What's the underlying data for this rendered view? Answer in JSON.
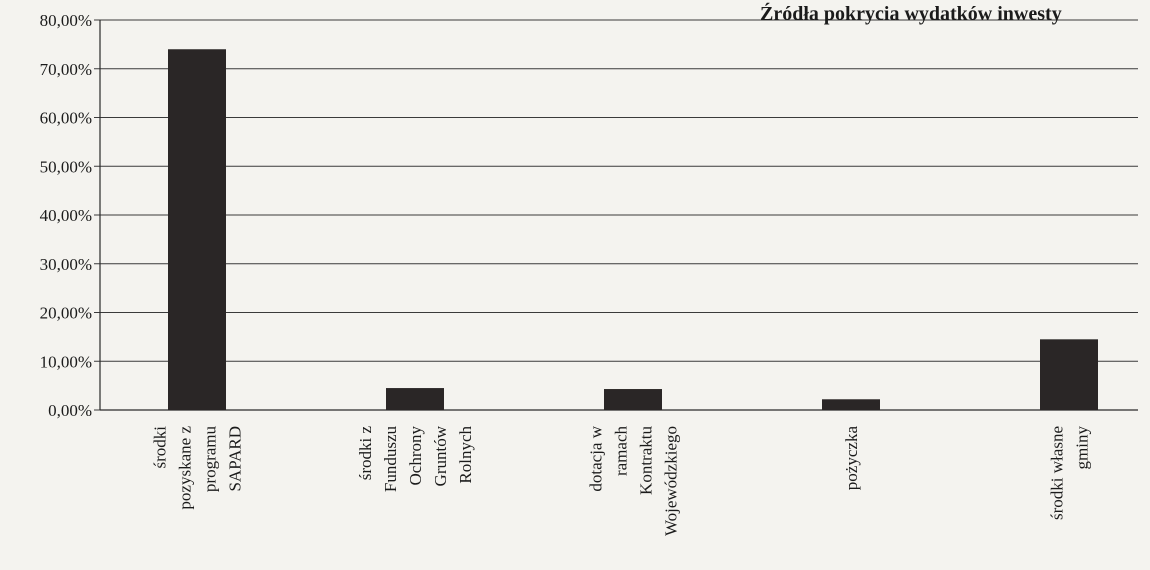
{
  "chart_data": {
    "type": "bar",
    "title": "Źródła pokrycia wydatków inwesty",
    "categories": [
      [
        "środki",
        "pozyskane z",
        "programu",
        "SAPARD"
      ],
      [
        "środki z",
        "Funduszu",
        "Ochrony",
        "Gruntów",
        "Rolnych"
      ],
      [
        "dotacja w",
        "ramach",
        "Kontraktu",
        "Wojewódzkiego"
      ],
      [
        "pożyczka"
      ],
      [
        "środki własne",
        "gminy"
      ]
    ],
    "values": [
      74.0,
      4.5,
      4.3,
      2.2,
      14.5
    ],
    "ylim": [
      0,
      80
    ],
    "yticks": [
      "0,00%",
      "10,00%",
      "20,00%",
      "30,00%",
      "40,00%",
      "50,00%",
      "60,00%",
      "70,00%",
      "80,00%"
    ],
    "grid": true,
    "bar_color": "#2a2626",
    "grid_color": "#3a3a3a"
  }
}
